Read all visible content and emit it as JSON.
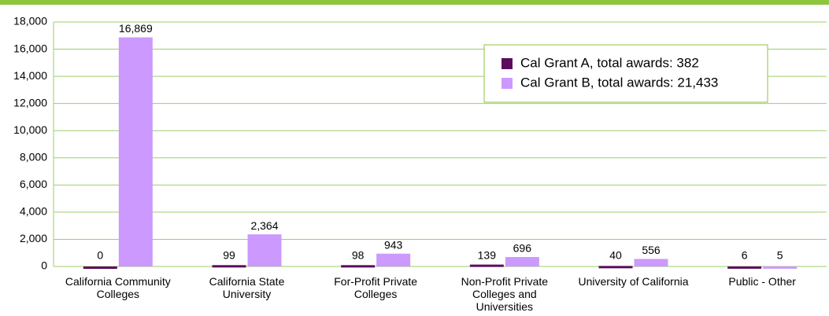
{
  "chart_data": {
    "type": "bar",
    "categories": [
      "California Community Colleges",
      "California State University",
      "For-Profit Private Colleges",
      "Non-Profit Private Colleges and Universities",
      "University of California",
      "Public - Other"
    ],
    "series": [
      {
        "name": "Cal Grant A, total awards: 382",
        "color": "#5c0c5c",
        "values": [
          0,
          99,
          98,
          139,
          40,
          6
        ],
        "value_labels": [
          "0",
          "99",
          "98",
          "139",
          "40",
          "6"
        ]
      },
      {
        "name": "Cal Grant B, total awards: 21,433",
        "color": "#cc99ff",
        "values": [
          16869,
          2364,
          943,
          696,
          556,
          5
        ],
        "value_labels": [
          "16,869",
          "2,364",
          "943",
          "696",
          "556",
          "5"
        ]
      }
    ],
    "ylim": [
      0,
      18000
    ],
    "yticks": [
      0,
      {
        "value": 2000,
        "label": "2,000"
      },
      {
        "value": 4000,
        "label": "4,000"
      },
      {
        "value": 6000,
        "label": "6,000"
      },
      {
        "value": 8000,
        "label": "8,000"
      },
      {
        "value": 10000,
        "label": "10,000"
      },
      {
        "value": 12000,
        "label": "12,000"
      },
      {
        "value": 14000,
        "label": "14,000"
      },
      {
        "value": 16000,
        "label": "16,000"
      },
      {
        "value": 18000,
        "label": "18,000"
      }
    ],
    "grid": true,
    "legend": "top-right"
  }
}
